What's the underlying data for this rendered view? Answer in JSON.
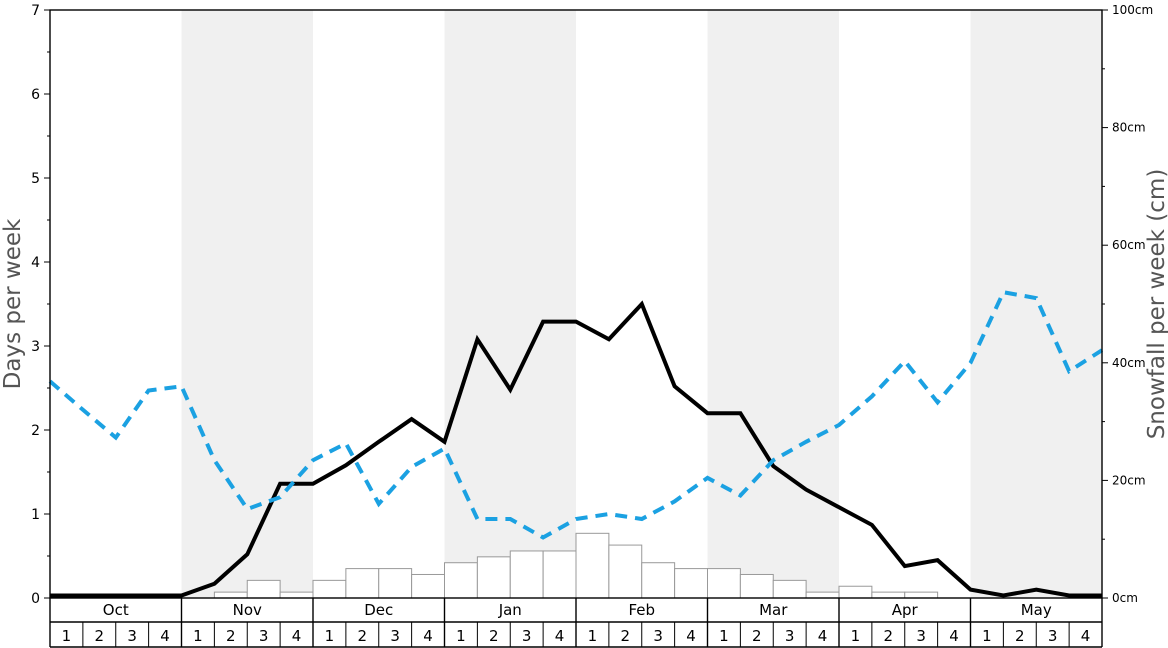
{
  "chart_data": {
    "type": "line",
    "ylabel": "Days per week",
    "y2label": "Snowfall per week (cm)",
    "ylim": [
      0,
      7
    ],
    "y_ticks": [
      "0",
      "1",
      "2",
      "3",
      "4",
      "5",
      "6",
      "7"
    ],
    "y2lim": [
      0,
      100
    ],
    "y2_ticks": [
      "0cm",
      "20cm",
      "40cm",
      "60cm",
      "80cm",
      "100cm"
    ],
    "months": [
      "Oct",
      "Nov",
      "Dec",
      "Jan",
      "Feb",
      "Mar",
      "Apr",
      "May"
    ],
    "weeks": [
      "1",
      "2",
      "3",
      "4"
    ],
    "shaded_months": [
      "Nov",
      "Jan",
      "Mar",
      "May"
    ],
    "grid": false,
    "colors": {
      "days_line": "#000000",
      "dashed_line": "#1ba1e2",
      "bars_fill": "#ffffff",
      "bars_stroke": "#999999",
      "band": "#f0f0f0"
    },
    "series": [
      {
        "kind": "bar",
        "axis": "right",
        "values": [
          0,
          0,
          0,
          0,
          0,
          1,
          3,
          1,
          3,
          5,
          5,
          4,
          6,
          7,
          8,
          8,
          11,
          9,
          6,
          5,
          5,
          4,
          3,
          1,
          2,
          1,
          1,
          0,
          0,
          0,
          0,
          0
        ]
      },
      {
        "kind": "line",
        "axis": "left",
        "style": "solid",
        "values": [
          0.03,
          0.03,
          0.03,
          0.03,
          0.03,
          0.17,
          0.52,
          1.36,
          1.36,
          1.58,
          1.86,
          2.13,
          1.86,
          3.08,
          2.48,
          3.29,
          3.29,
          3.08,
          3.5,
          2.52,
          2.2,
          2.2,
          1.57,
          1.29,
          1.08,
          0.87,
          0.38,
          0.45,
          0.1,
          0.03,
          0.1,
          0.03,
          0.03
        ]
      },
      {
        "kind": "line",
        "axis": "left",
        "style": "dashed",
        "values": [
          2.58,
          2.24,
          1.91,
          2.47,
          2.52,
          1.64,
          1.06,
          1.2,
          1.64,
          1.84,
          1.12,
          1.56,
          1.78,
          0.94,
          0.94,
          0.72,
          0.94,
          1.0,
          0.94,
          1.15,
          1.43,
          1.22,
          1.64,
          1.86,
          2.06,
          2.4,
          2.82,
          2.33,
          2.8,
          3.64,
          3.57,
          2.7,
          2.95
        ]
      }
    ]
  }
}
